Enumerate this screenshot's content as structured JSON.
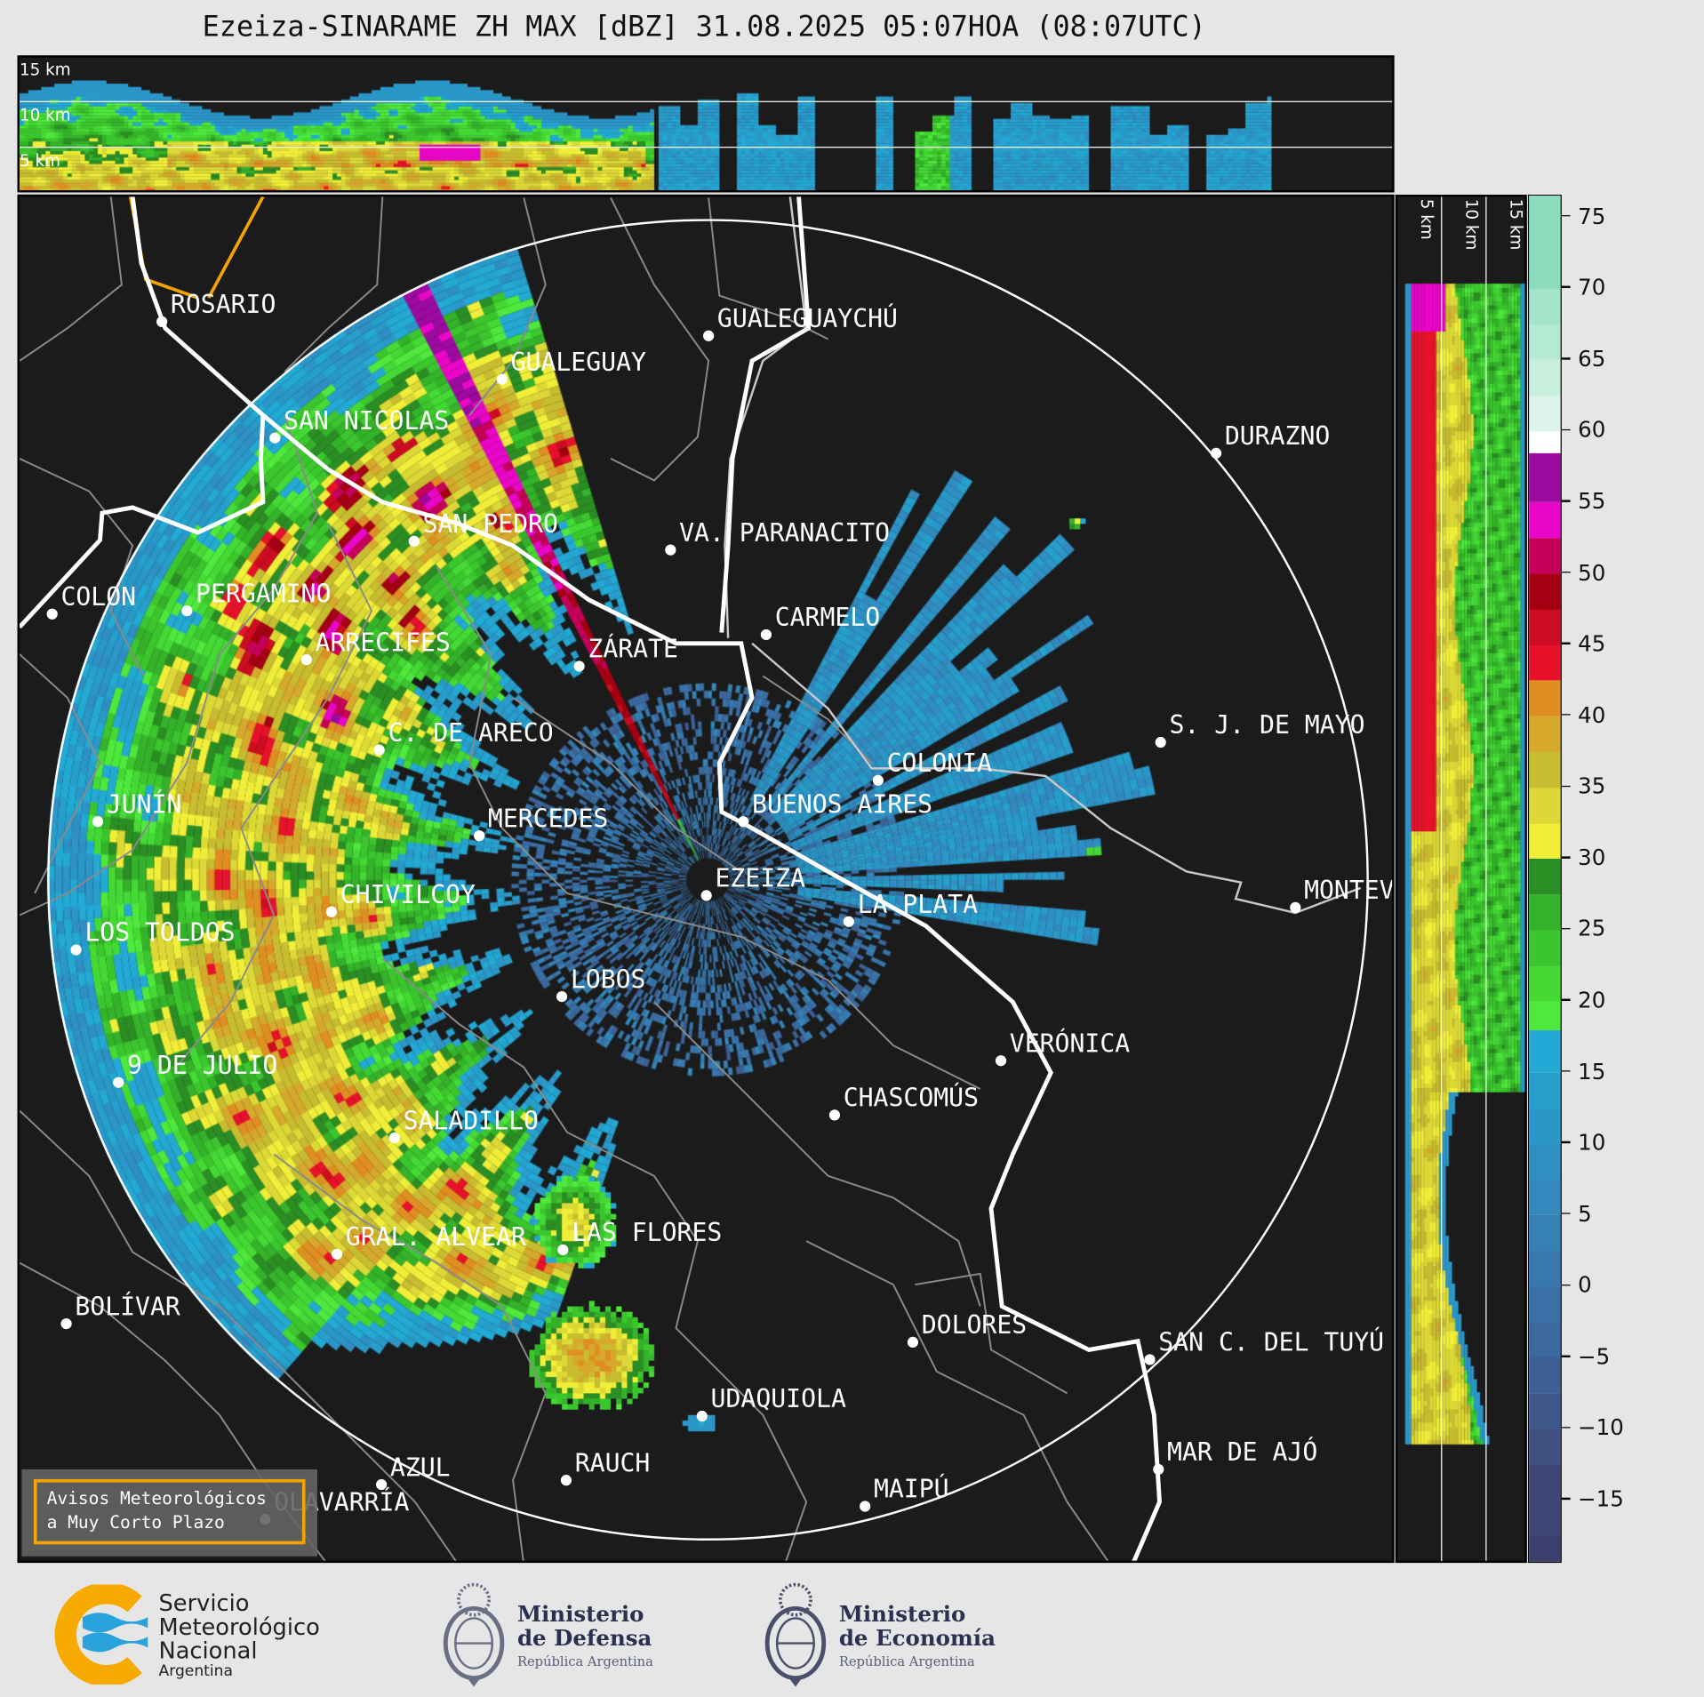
{
  "title": "Ezeiza-SINARAME ZH MAX [dBZ] 31.08.2025 05:07HOA (08:07UTC)",
  "top_panel": {
    "height_labels": [
      "15 km",
      "10 km",
      "5 km"
    ]
  },
  "side_panel": {
    "height_labels": [
      "5 km",
      "10 km",
      "15 km"
    ]
  },
  "colorbar": {
    "range": [
      -19.5,
      76.5
    ],
    "ticks": [
      75,
      70,
      65,
      60,
      55,
      50,
      45,
      40,
      35,
      30,
      25,
      20,
      15,
      10,
      5,
      0,
      -5,
      -10,
      -15
    ],
    "tick_labels": [
      "75",
      "70",
      "65",
      "60",
      "55",
      "50",
      "45",
      "40",
      "35",
      "30",
      "25",
      "20",
      "15",
      "10",
      "5",
      "0",
      "−5",
      "−10",
      "−15"
    ],
    "bins": [
      [
        -19.5,
        -17.5,
        "#3b3f6b"
      ],
      [
        -17.5,
        -12.5,
        "#3d4675"
      ],
      [
        -12.5,
        -10,
        "#3f4f80"
      ],
      [
        -10,
        -7.5,
        "#3f568a"
      ],
      [
        -7.5,
        -5,
        "#3d5f94"
      ],
      [
        -5,
        -2.5,
        "#3b689e"
      ],
      [
        -2.5,
        0,
        "#3a70a6"
      ],
      [
        0,
        2.5,
        "#3878ae"
      ],
      [
        2.5,
        5,
        "#3680b6"
      ],
      [
        5,
        7.5,
        "#3388bd"
      ],
      [
        7.5,
        10,
        "#2f8fc3"
      ],
      [
        10,
        12.5,
        "#2b97c8"
      ],
      [
        12.5,
        15,
        "#279fcc"
      ],
      [
        15,
        18,
        "#22a9d4"
      ],
      [
        18,
        20,
        "#4fe83c"
      ],
      [
        20,
        22.5,
        "#44d934"
      ],
      [
        22.5,
        25,
        "#3cc62e"
      ],
      [
        25,
        27.5,
        "#34b22a"
      ],
      [
        27.5,
        30,
        "#2b8e24"
      ],
      [
        30,
        32.5,
        "#f0ee38"
      ],
      [
        32.5,
        35,
        "#dcd836"
      ],
      [
        35,
        37.5,
        "#c8bc30"
      ],
      [
        37.5,
        40,
        "#d6a92c"
      ],
      [
        40,
        42.5,
        "#e08e22"
      ],
      [
        42.5,
        45,
        "#e8112b"
      ],
      [
        45,
        47.5,
        "#cc0c20"
      ],
      [
        47.5,
        50,
        "#a50012"
      ],
      [
        50,
        52.5,
        "#c6005a"
      ],
      [
        52.5,
        55,
        "#ea06c8"
      ],
      [
        55,
        58.5,
        "#9c0aa0"
      ],
      [
        58.5,
        60,
        "#ffffff"
      ],
      [
        60,
        62.5,
        "#dcf4ea"
      ],
      [
        62.5,
        65,
        "#c6efde"
      ],
      [
        65,
        67.5,
        "#b5ead2"
      ],
      [
        67.5,
        70,
        "#a4e4c8"
      ],
      [
        70,
        76.5,
        "#8adcbc"
      ]
    ]
  },
  "map": {
    "colors": {
      "background": "#1b1b1b",
      "coastline": "#ffffff",
      "borders": "#8a8a8a",
      "range_ring": "#ffffff",
      "highway": "#f5a300"
    },
    "radar_site": "EZEIZA",
    "cities": [
      "ROSARIO",
      "GUALEGUAYCHÚ",
      "GUALEGUAY",
      "SAN NICOLAS",
      "DURAZNO",
      "SAN PEDRO",
      "VA. PARANACITO",
      "COLON",
      "PERGAMINO",
      "CARMELO",
      "ARRECIFES",
      "ZÁRATE",
      "S. J. DE MAYO",
      "C. DE ARECO",
      "COLONIA",
      "BUENOS AIRES",
      "JUNÍN",
      "MERCEDES",
      "EZEIZA",
      "MONTEVIDEO",
      "LA PLATA",
      "CHIVILCOY",
      "LOS TOLDOS",
      "LOBOS",
      "VERÓNICA",
      "9 DE JULIO",
      "CHASCOMÚS",
      "SALADILLO",
      "GRAL. ALVEAR",
      "LAS FLORES",
      "BOLÍVAR",
      "DOLORES",
      "SAN C. DEL TUYÚ",
      "UDAQUIOLA",
      "MAR DE AJÓ",
      "AZUL",
      "RAUCH",
      "OLAVARRÍA",
      "MAIPÚ"
    ]
  },
  "warning_box": {
    "line1": "Avisos Meteorológicos",
    "line2": "a Muy Corto Plazo"
  },
  "logos": {
    "smn": {
      "line1": "Servicio",
      "line2": "Meteorológico",
      "line3": "Nacional",
      "line4": "Argentina"
    },
    "defensa": {
      "line1": "Ministerio",
      "line2": "de Defensa",
      "line3": "República Argentina"
    },
    "economia": {
      "line1": "Ministerio",
      "line2": "de Economía",
      "line3": "República Argentina"
    }
  }
}
